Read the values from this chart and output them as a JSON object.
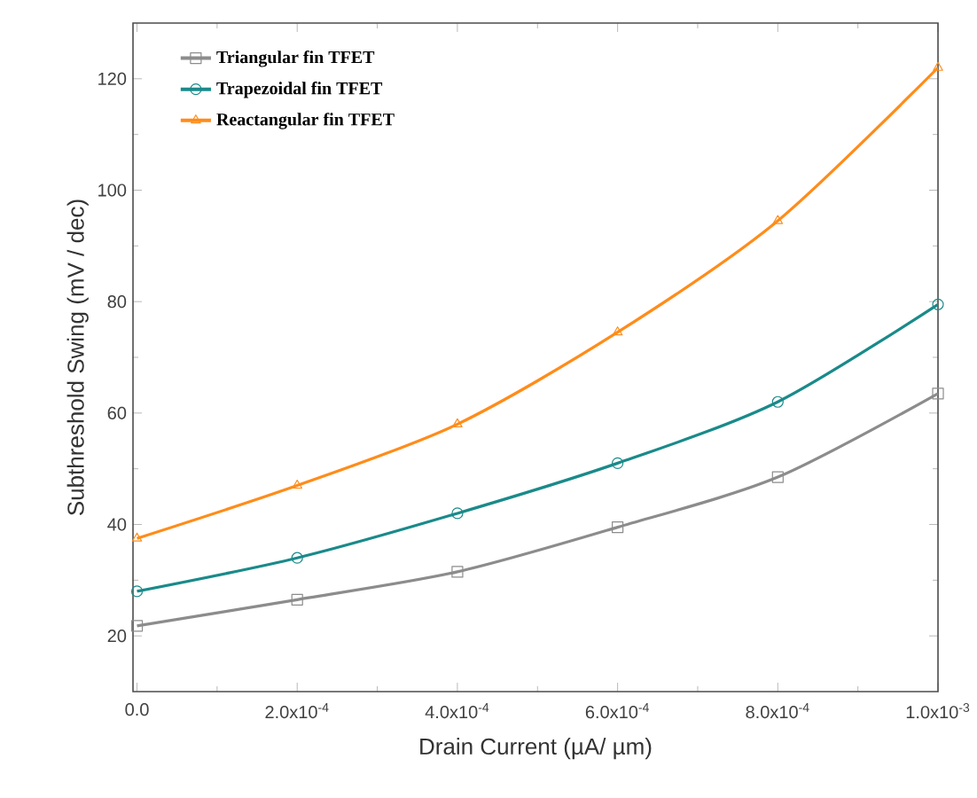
{
  "chart_data": {
    "type": "line",
    "xlabel": "Drain Current (µA/ µm)",
    "ylabel": "Subthreshold Swing (mV / dec)",
    "x": [
      0,
      0.0002,
      0.0004,
      0.0006,
      0.0008,
      0.001
    ],
    "xlim": [
      -5e-06,
      0.001
    ],
    "ylim": [
      10,
      130
    ],
    "xticks": [
      {
        "value": 0,
        "label": "0.0"
      },
      {
        "value": 0.0002,
        "label": "2.0x10$^{-4}$"
      },
      {
        "value": 0.0004,
        "label": "4.0x10$^{-4}$"
      },
      {
        "value": 0.0006,
        "label": "6.0x10$^{-4}$"
      },
      {
        "value": 0.0008,
        "label": "8.0x10$^{-4}$"
      },
      {
        "value": 0.001,
        "label": "1.0x10$^{-3}$"
      }
    ],
    "yticks": [
      20,
      40,
      60,
      80,
      100,
      120
    ],
    "legend": "top left",
    "grid": false,
    "line_style": "solid",
    "series": [
      {
        "name": "Triangular fin TFET",
        "color": "#8c8c8c",
        "marker": "square",
        "values": [
          21.8,
          26.5,
          31.5,
          39.5,
          48.5,
          63.5
        ]
      },
      {
        "name": "Trapezoidal fin TFET",
        "color": "#1a8a8a",
        "marker": "circle",
        "values": [
          28,
          34,
          42,
          51,
          62,
          79.5
        ]
      },
      {
        "name": "Reactangular fin TFET",
        "color": "#ff8c1a",
        "marker": "triangle",
        "values": [
          37.5,
          47,
          58,
          74.5,
          94.5,
          122
        ]
      }
    ]
  }
}
